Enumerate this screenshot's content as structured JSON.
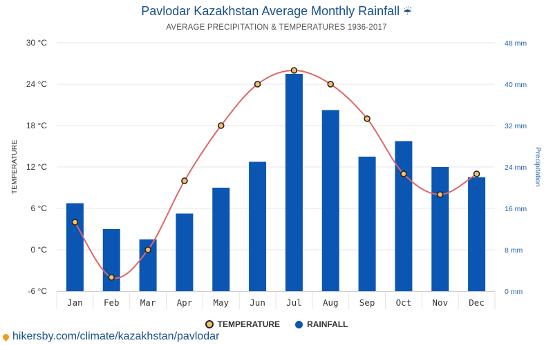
{
  "header": {
    "title": "Pavlodar Kazakhstan Average Monthly Rainfall",
    "title_icon": "umbrella-icon",
    "title_glyph": "☔",
    "subtitle": "AVERAGE PRECIPITATION & TEMPERATURES 1936-2017"
  },
  "legend": {
    "temperature_label": "TEMPERATURE",
    "rainfall_label": "RAINFALL"
  },
  "footer": {
    "url": "hikersby.com/climate/kazakhstan/pavlodar",
    "icon": "location-pin-icon"
  },
  "chart_data": {
    "type": "bar",
    "title": "Pavlodar Kazakhstan Average Monthly Rainfall",
    "subtitle": "AVERAGE PRECIPITATION & TEMPERATURES 1936-2017",
    "categories": [
      "Jan",
      "Feb",
      "Mar",
      "Apr",
      "May",
      "Jun",
      "Jul",
      "Aug",
      "Sep",
      "Oct",
      "Nov",
      "Dec"
    ],
    "series": [
      {
        "name": "RAINFALL",
        "type": "bar",
        "axis": "right",
        "unit": "mm",
        "color": "#0b56b3",
        "values": [
          17,
          12,
          10,
          15,
          20,
          25,
          42,
          35,
          26,
          29,
          24,
          22
        ]
      },
      {
        "name": "TEMPERATURE",
        "type": "line",
        "axis": "left",
        "unit": "°C",
        "color": "#e06666",
        "marker_color": "#f5c06a",
        "values": [
          4,
          -4,
          0,
          10,
          18,
          24,
          26,
          24,
          19,
          11,
          8,
          11
        ]
      }
    ],
    "left_axis": {
      "label": "TEMPERATURE",
      "ylim": [
        -6,
        30
      ],
      "ticks": [
        -6,
        0,
        6,
        12,
        18,
        24,
        30
      ],
      "tick_labels": [
        "-6 °C",
        "0 °C",
        "6 °C",
        "12 °C",
        "18 °C",
        "24 °C",
        "30 °C"
      ]
    },
    "right_axis": {
      "label": "Precipitation",
      "ylim": [
        0,
        48
      ],
      "ticks": [
        0,
        8,
        16,
        24,
        32,
        40,
        48
      ],
      "tick_labels": [
        "0 mm",
        "8 mm",
        "16 mm",
        "24 mm",
        "32 mm",
        "40 mm",
        "48 mm"
      ]
    },
    "grid": true,
    "legend_position": "bottom-center"
  }
}
